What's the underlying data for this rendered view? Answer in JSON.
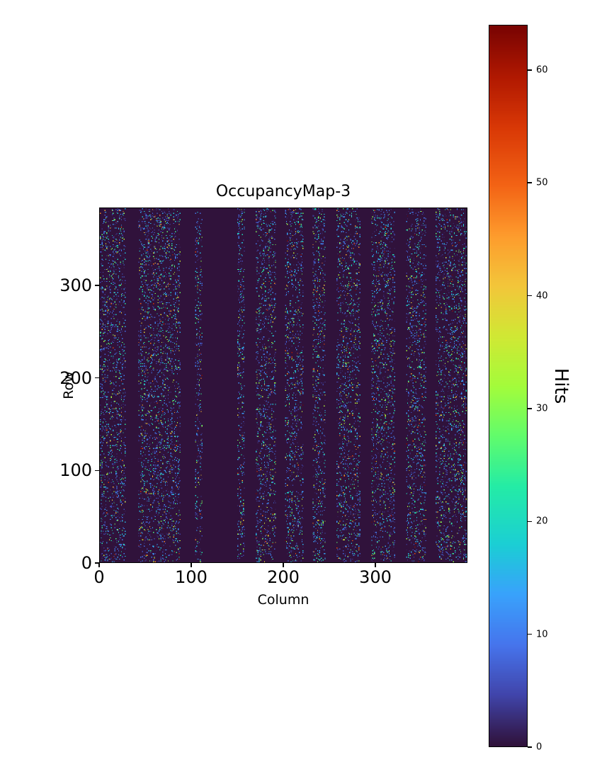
{
  "axes": {
    "xlabel": "Column",
    "ylabel": "Row",
    "x_ticks": [
      0,
      100,
      200,
      300
    ],
    "y_ticks": [
      0,
      100,
      200,
      300
    ]
  },
  "colorbar": {
    "label": "Hits",
    "ticks": [
      0,
      10,
      20,
      30,
      40,
      50,
      60
    ],
    "vmin": 0,
    "vmax": 64
  },
  "chart_data": {
    "type": "heatmap",
    "title": "OccupancyMap-3",
    "xlabel": "Column",
    "ylabel": "Row",
    "value_label": "Hits",
    "n_cols": 400,
    "n_rows": 384,
    "xlim": [
      0,
      400
    ],
    "ylim": [
      0,
      384
    ],
    "vmin": 0,
    "vmax": 64,
    "colormap": "turbo",
    "colormap_stops": [
      {
        "t": 0.0,
        "color": "#30123b"
      },
      {
        "t": 0.07,
        "color": "#4145ab"
      },
      {
        "t": 0.14,
        "color": "#4675ed"
      },
      {
        "t": 0.21,
        "color": "#39a2fc"
      },
      {
        "t": 0.28,
        "color": "#1bcfd4"
      },
      {
        "t": 0.36,
        "color": "#24eca6"
      },
      {
        "t": 0.43,
        "color": "#61fc6c"
      },
      {
        "t": 0.5,
        "color": "#a4fc3b"
      },
      {
        "t": 0.57,
        "color": "#d1e834"
      },
      {
        "t": 0.64,
        "color": "#f3c63a"
      },
      {
        "t": 0.71,
        "color": "#fe9b2d"
      },
      {
        "t": 0.78,
        "color": "#f36315"
      },
      {
        "t": 0.86,
        "color": "#d93806"
      },
      {
        "t": 0.93,
        "color": "#b11901"
      },
      {
        "t": 1.0,
        "color": "#7a0402"
      }
    ],
    "background_value": 0,
    "hit_fraction": 0.13,
    "hit_value_mean": 13,
    "dead_column_ranges": [
      [
        28,
        42
      ],
      [
        88,
        104
      ],
      [
        112,
        150
      ],
      [
        158,
        170
      ],
      [
        192,
        202
      ],
      [
        222,
        232
      ],
      [
        246,
        258
      ],
      [
        284,
        296
      ],
      [
        322,
        334
      ],
      [
        356,
        366
      ]
    ],
    "seed": 1337,
    "description": "Sparse random per-pixel hit occupancy map; uniformly scattered low-count hits over active columns, zero-occupancy vertical dead-column bands, values 0-64 on a turbo colormap."
  }
}
